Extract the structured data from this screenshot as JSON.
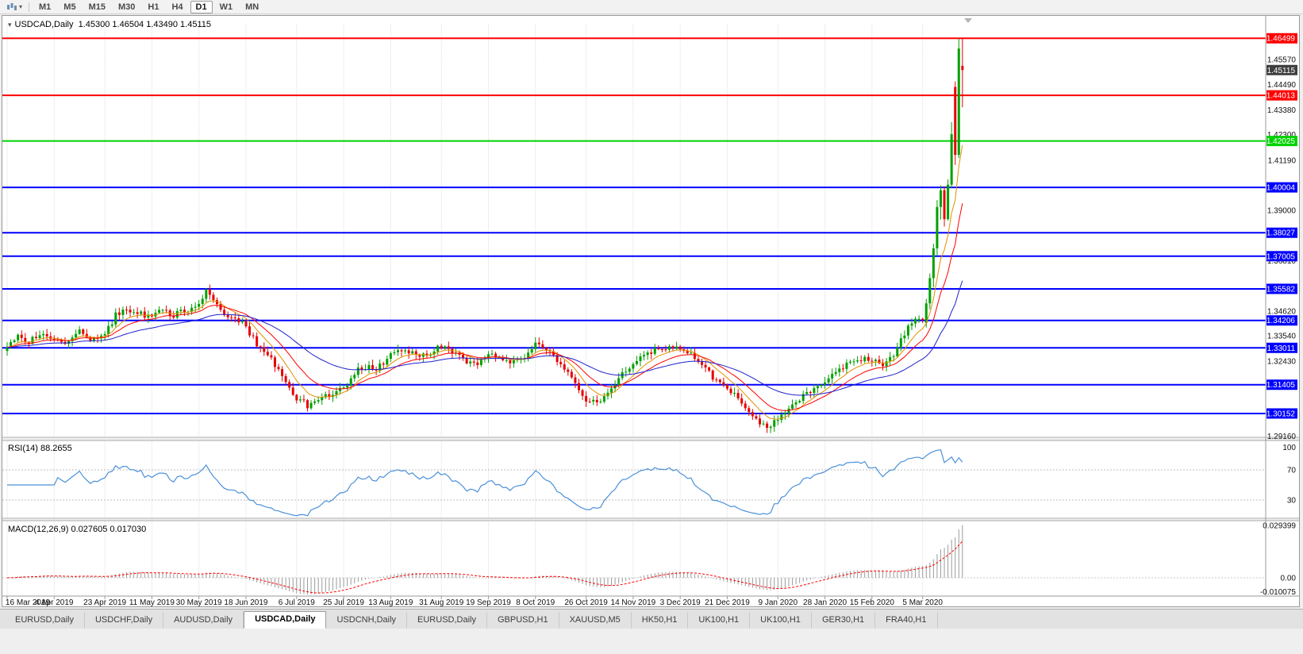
{
  "icons": {
    "caret": "▾",
    "collapse": "▾"
  },
  "toolbar": {
    "timeframes": [
      {
        "label": "M1",
        "active": false
      },
      {
        "label": "M5",
        "active": false
      },
      {
        "label": "M15",
        "active": false
      },
      {
        "label": "M30",
        "active": false
      },
      {
        "label": "H1",
        "active": false
      },
      {
        "label": "H4",
        "active": false
      },
      {
        "label": "D1",
        "active": true
      },
      {
        "label": "W1",
        "active": false
      },
      {
        "label": "MN",
        "active": false
      }
    ]
  },
  "chart": {
    "symbol": "USDCAD",
    "period": "Daily",
    "header": "USDCAD,Daily  1.45300 1.46504 1.43490 1.45115",
    "open": "1.45300",
    "high": "1.46504",
    "low": "1.43490",
    "close": "1.45115"
  },
  "chart_data": {
    "type": "candlestick",
    "symbol": "USDCAD",
    "timeframe": "Daily",
    "current_bar": {
      "open": 1.453,
      "high": 1.46504,
      "low": 1.4349,
      "close": 1.45115
    },
    "up_color": "#00a000",
    "down_color": "#e60000",
    "bar_count": 265,
    "jitter_until": 253,
    "price_axis_range": {
      "top": 1.4713,
      "bottom": 1.29148
    },
    "price_ticks": [
      "1.45570",
      "1.44490",
      "1.43380",
      "1.42300",
      "1.41190",
      "1.39000",
      "1.36810",
      "1.34620",
      "1.33540",
      "1.32430",
      "1.29160"
    ],
    "hlines": [
      {
        "price": 1.46499,
        "label": "1.46499",
        "color": "#ff0000"
      },
      {
        "price": 1.44013,
        "label": "1.44013",
        "color": "#ff0000"
      },
      {
        "price": 1.42025,
        "label": "1.42025",
        "color": "#00d200"
      },
      {
        "price": 1.40004,
        "label": "1.40004",
        "color": "#0000ff"
      },
      {
        "price": 1.38027,
        "label": "1.38027",
        "color": "#0000ff"
      },
      {
        "price": 1.37005,
        "label": "1.37005",
        "color": "#0000ff"
      },
      {
        "price": 1.35582,
        "label": "1.35582",
        "color": "#0000ff"
      },
      {
        "price": 1.34206,
        "label": "1.34206",
        "color": "#0000ff"
      },
      {
        "price": 1.33011,
        "label": "1.33011",
        "color": "#0000ff"
      },
      {
        "price": 1.31405,
        "label": "1.31405",
        "color": "#0000ff"
      },
      {
        "price": 1.30152,
        "label": "1.30152",
        "color": "#0000ff"
      }
    ],
    "current_price_marker": {
      "price": 1.45115,
      "label": "1.45115",
      "color": "#3f3f3f"
    },
    "date_labels": [
      {
        "i": 0,
        "label": "16 Mar 2019"
      },
      {
        "i": 13,
        "label": "4 Apr 2019"
      },
      {
        "i": 27,
        "label": "23 Apr 2019"
      },
      {
        "i": 40,
        "label": "11 May 2019"
      },
      {
        "i": 53,
        "label": "30 May 2019"
      },
      {
        "i": 66,
        "label": "18 Jun 2019"
      },
      {
        "i": 80,
        "label": "6 Jul 2019"
      },
      {
        "i": 93,
        "label": "25 Jul 2019"
      },
      {
        "i": 106,
        "label": "13 Aug 2019"
      },
      {
        "i": 120,
        "label": "31 Aug 2019"
      },
      {
        "i": 133,
        "label": "19 Sep 2019"
      },
      {
        "i": 146,
        "label": "8 Oct 2019"
      },
      {
        "i": 160,
        "label": "26 Oct 2019"
      },
      {
        "i": 173,
        "label": "14 Nov 2019"
      },
      {
        "i": 186,
        "label": "3 Dec 2019"
      },
      {
        "i": 199,
        "label": "21 Dec 2019"
      },
      {
        "i": 213,
        "label": "9 Jan 2020"
      },
      {
        "i": 226,
        "label": "28 Jan 2020"
      },
      {
        "i": 239,
        "label": "15 Feb 2020"
      },
      {
        "i": 253,
        "label": "5 Mar 2020"
      }
    ],
    "close_anchors": [
      [
        0,
        1.331
      ],
      [
        3,
        1.3355
      ],
      [
        6,
        1.333
      ],
      [
        9,
        1.336
      ],
      [
        13,
        1.3345
      ],
      [
        16,
        1.331
      ],
      [
        20,
        1.337
      ],
      [
        23,
        1.3345
      ],
      [
        27,
        1.3355
      ],
      [
        30,
        1.3445
      ],
      [
        33,
        1.347
      ],
      [
        36,
        1.3455
      ],
      [
        40,
        1.343
      ],
      [
        43,
        1.3465
      ],
      [
        46,
        1.3445
      ],
      [
        50,
        1.347
      ],
      [
        53,
        1.3495
      ],
      [
        55,
        1.3545
      ],
      [
        57,
        1.352
      ],
      [
        59,
        1.346
      ],
      [
        61,
        1.3425
      ],
      [
        63,
        1.344
      ],
      [
        66,
        1.339
      ],
      [
        69,
        1.332
      ],
      [
        72,
        1.327
      ],
      [
        75,
        1.321
      ],
      [
        78,
        1.313
      ],
      [
        80,
        1.3085
      ],
      [
        83,
        1.305
      ],
      [
        86,
        1.307
      ],
      [
        89,
        1.3095
      ],
      [
        93,
        1.3125
      ],
      [
        96,
        1.3195
      ],
      [
        99,
        1.322
      ],
      [
        102,
        1.3205
      ],
      [
        106,
        1.327
      ],
      [
        109,
        1.329
      ],
      [
        112,
        1.3275
      ],
      [
        115,
        1.3265
      ],
      [
        118,
        1.3295
      ],
      [
        120,
        1.331
      ],
      [
        123,
        1.329
      ],
      [
        126,
        1.3245
      ],
      [
        129,
        1.3225
      ],
      [
        133,
        1.327
      ],
      [
        136,
        1.3255
      ],
      [
        139,
        1.3235
      ],
      [
        142,
        1.3245
      ],
      [
        146,
        1.332
      ],
      [
        149,
        1.3295
      ],
      [
        152,
        1.325
      ],
      [
        155,
        1.3185
      ],
      [
        158,
        1.311
      ],
      [
        160,
        1.3075
      ],
      [
        163,
        1.3055
      ],
      [
        166,
        1.311
      ],
      [
        169,
        1.317
      ],
      [
        173,
        1.324
      ],
      [
        176,
        1.327
      ],
      [
        179,
        1.329
      ],
      [
        183,
        1.3305
      ],
      [
        186,
        1.3295
      ],
      [
        189,
        1.3275
      ],
      [
        192,
        1.322
      ],
      [
        195,
        1.3175
      ],
      [
        199,
        1.3125
      ],
      [
        202,
        1.308
      ],
      [
        205,
        1.302
      ],
      [
        208,
        1.2975
      ],
      [
        210,
        1.2958
      ],
      [
        213,
        1.299
      ],
      [
        216,
        1.304
      ],
      [
        219,
        1.308
      ],
      [
        222,
        1.311
      ],
      [
        226,
        1.316
      ],
      [
        229,
        1.32
      ],
      [
        232,
        1.323
      ],
      [
        235,
        1.3245
      ],
      [
        239,
        1.3255
      ],
      [
        242,
        1.323
      ],
      [
        245,
        1.327
      ],
      [
        247,
        1.333
      ],
      [
        249,
        1.339
      ],
      [
        251,
        1.342
      ],
      [
        253,
        1.341
      ],
      [
        254,
        1.3495
      ]
    ],
    "final_bars": [
      {
        "i": 254,
        "o": 1.341,
        "h": 1.3515,
        "l": 1.339,
        "c": 1.3495
      },
      {
        "i": 255,
        "o": 1.3495,
        "h": 1.3625,
        "l": 1.347,
        "c": 1.3605
      },
      {
        "i": 256,
        "o": 1.3605,
        "h": 1.3755,
        "l": 1.3565,
        "c": 1.3735
      },
      {
        "i": 257,
        "o": 1.3735,
        "h": 1.3945,
        "l": 1.3705,
        "c": 1.3915
      },
      {
        "i": 258,
        "o": 1.3915,
        "h": 1.4008,
        "l": 1.386,
        "c": 1.3988
      },
      {
        "i": 259,
        "o": 1.3988,
        "h": 1.4005,
        "l": 1.383,
        "c": 1.3862
      },
      {
        "i": 260,
        "o": 1.3862,
        "h": 1.4035,
        "l": 1.3855,
        "c": 1.4012
      },
      {
        "i": 261,
        "o": 1.4012,
        "h": 1.4285,
        "l": 1.3998,
        "c": 1.4232
      },
      {
        "i": 262,
        "o": 1.4438,
        "h": 1.4462,
        "l": 1.4098,
        "c": 1.4142
      },
      {
        "i": 263,
        "o": 1.4142,
        "h": 1.4648,
        "l": 1.4128,
        "c": 1.4605
      },
      {
        "i": 264,
        "o": 1.453,
        "h": 1.46504,
        "l": 1.4349,
        "c": 1.45115
      }
    ],
    "moving_averages": [
      {
        "name": "ma-fast",
        "period": 8,
        "color": "#e09000"
      },
      {
        "name": "ma-mid",
        "period": 16,
        "color": "#ff0000"
      },
      {
        "name": "ma-slow",
        "period": 40,
        "color": "#2020cc"
      }
    ],
    "rsi": {
      "label": "RSI(14) 88.2655",
      "period": 14,
      "value": 88.2655,
      "color": "#4a90d9",
      "levels": [
        70,
        30
      ],
      "axis": [
        {
          "v": 100,
          "label": "100"
        },
        {
          "v": 70,
          "label": "70"
        },
        {
          "v": 30,
          "label": "30"
        }
      ]
    },
    "macd": {
      "label": "MACD(12,26,9) 0.027605 0.017030",
      "fast": 12,
      "slow": 26,
      "signal_period": 9,
      "macd_value": 0.027605,
      "signal_value": 0.01703,
      "bar_color": "#9b9b9b",
      "signal_color": "#ff0000",
      "axis": [
        {
          "v": 0.029399,
          "label": "0.029399"
        },
        {
          "v": 0,
          "label": "0.00"
        },
        {
          "v": -0.010075,
          "label": "-0.010075"
        }
      ]
    }
  },
  "tabs": [
    {
      "label": "EURUSD,Daily",
      "active": false
    },
    {
      "label": "USDCHF,Daily",
      "active": false
    },
    {
      "label": "AUDUSD,Daily",
      "active": false
    },
    {
      "label": "USDCAD,Daily",
      "active": true
    },
    {
      "label": "USDCNH,Daily",
      "active": false
    },
    {
      "label": "EURUSD,Daily",
      "active": false
    },
    {
      "label": "GBPUSD,H1",
      "active": false
    },
    {
      "label": "XAUUSD,M5",
      "active": false
    },
    {
      "label": "HK50,H1",
      "active": false
    },
    {
      "label": "UK100,H1",
      "active": false
    },
    {
      "label": "UK100,H1",
      "active": false
    },
    {
      "label": "GER30,H1",
      "active": false
    },
    {
      "label": "FRA40,H1",
      "active": false
    }
  ]
}
